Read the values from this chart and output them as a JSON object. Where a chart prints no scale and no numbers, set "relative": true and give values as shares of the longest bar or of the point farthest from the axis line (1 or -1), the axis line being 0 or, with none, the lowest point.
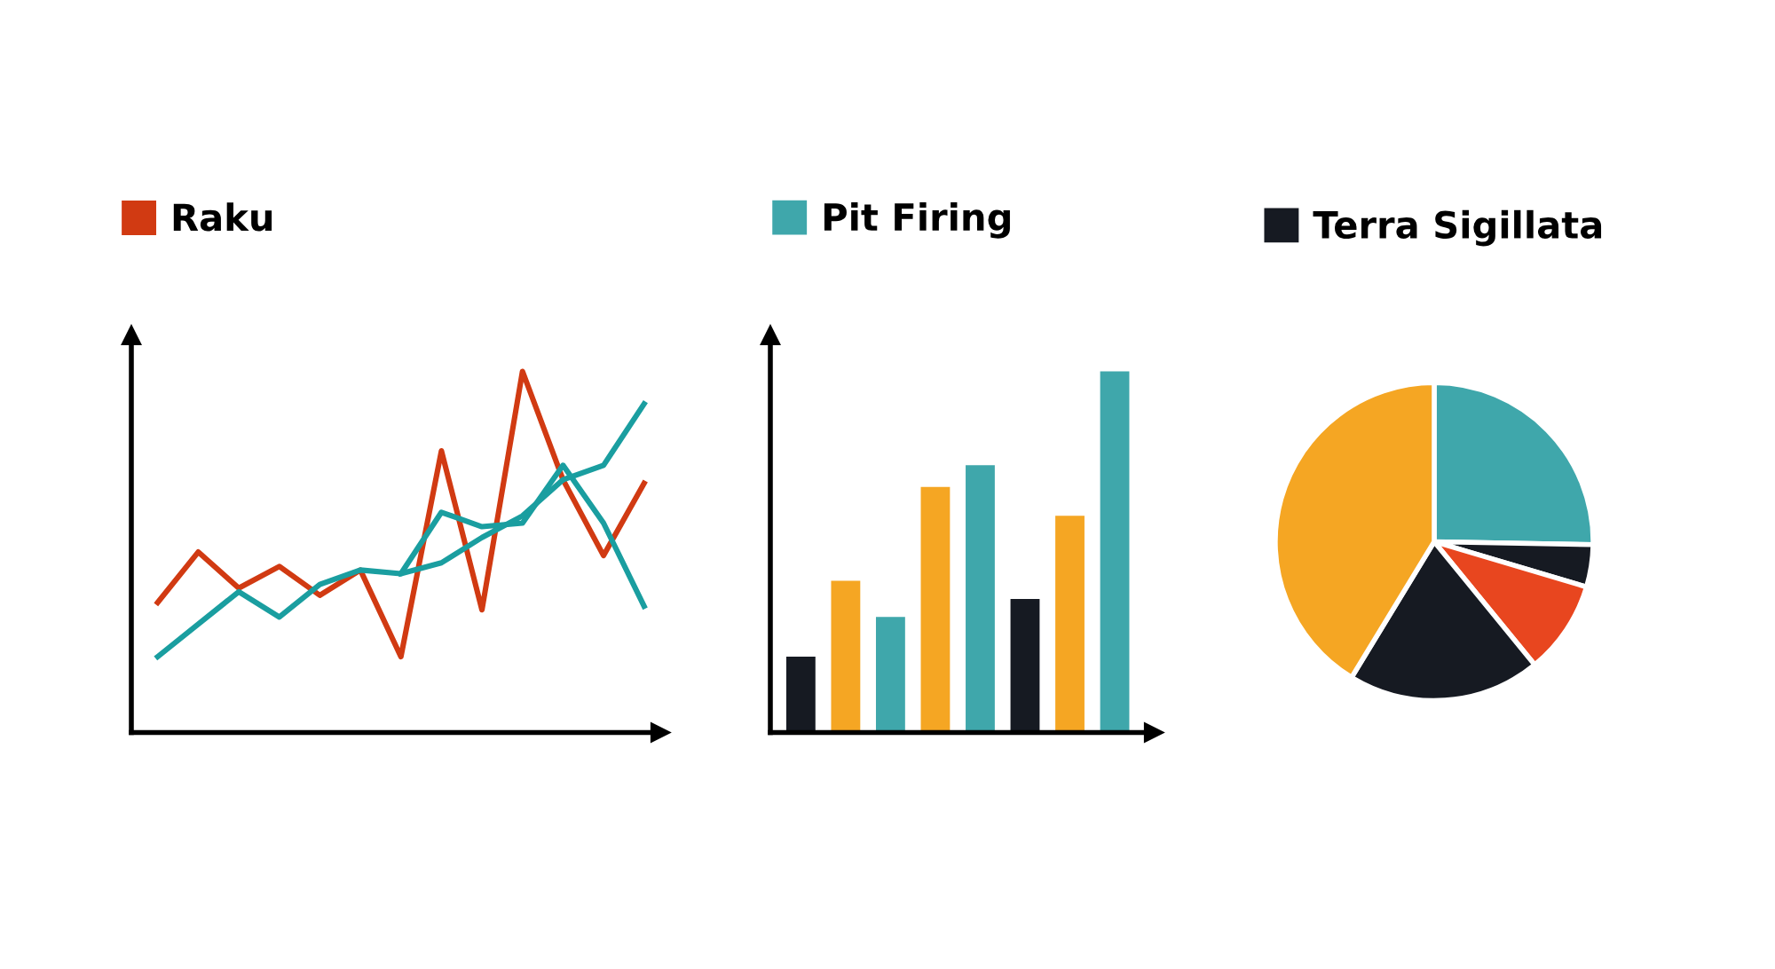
{
  "chart_data": [
    {
      "type": "line",
      "relative": true,
      "legend": "top left",
      "marker": "none",
      "line_style": "solid",
      "categories": [
        null,
        null,
        null,
        null,
        null,
        null,
        null,
        null,
        null,
        null,
        null,
        null,
        null
      ],
      "series": [
        {
          "name": "Raku",
          "color": "#d13a12",
          "values": [
            0.36,
            0.5,
            0.4,
            0.46,
            0.38,
            0.45,
            0.21,
            0.78,
            0.34,
            1.0,
            0.7,
            0.49,
            0.69
          ]
        },
        {
          "color": "#1a9ea0",
          "values": [
            0.21,
            0.3,
            0.39,
            0.32,
            0.41,
            0.45,
            0.44,
            0.61,
            0.57,
            0.58,
            0.74,
            0.58,
            0.35
          ]
        },
        {
          "color": "#1a9ea0",
          "values": [
            null,
            null,
            null,
            null,
            null,
            null,
            0.44,
            0.47,
            0.54,
            0.6,
            0.7,
            0.74,
            0.91
          ]
        }
      ]
    },
    {
      "type": "bar",
      "relative": true,
      "legend": "top left",
      "categories": [
        null,
        null,
        null,
        null,
        null,
        null,
        null,
        null
      ],
      "series": [
        {
          "name": "Pit Firing",
          "color": "#3fa7ab",
          "colors": [
            "#161a22",
            "#f5a623",
            "#3fa7ab",
            "#f5a623",
            "#3fa7ab",
            "#161a22",
            "#f5a623",
            "#3fa7ab"
          ],
          "values": [
            0.21,
            0.42,
            0.32,
            0.68,
            0.74,
            0.37,
            0.6,
            1.0
          ]
        }
      ]
    },
    {
      "type": "pie",
      "legend": "top left",
      "categories": [
        null,
        null,
        null,
        "Terra Sigillata",
        null
      ],
      "values": [
        25.3,
        4.3,
        9.5,
        19.6,
        41.3
      ],
      "colors": [
        "#3fa7ab",
        "#161a22",
        "#e8461f",
        "#161a22",
        "#f5a623"
      ]
    }
  ]
}
